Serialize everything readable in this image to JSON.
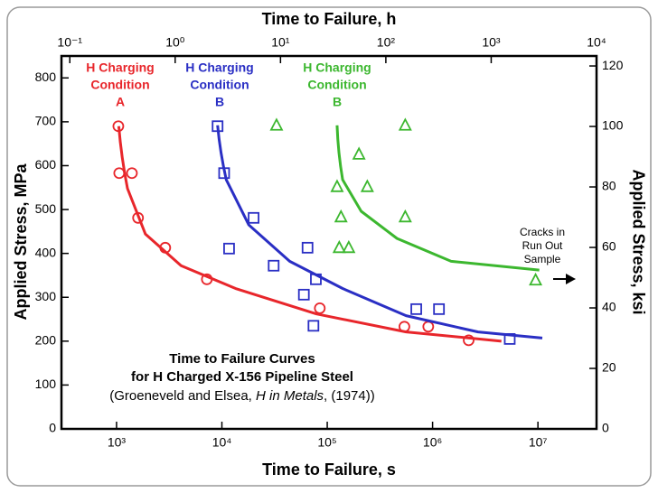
{
  "chart_data": {
    "type": "scatter",
    "xlabel": "Time to Failure, s",
    "x2label": "Time to Failure, h",
    "ylabel": "Applied Stress, MPa",
    "y2label": "Applied Stress, ksi",
    "xscale": "log",
    "xlim": [
      300,
      36000000
    ],
    "xticks": [
      {
        "value": 1000,
        "label": "10³"
      },
      {
        "value": 10000,
        "label": "10⁴"
      },
      {
        "value": 100000,
        "label": "10⁵"
      },
      {
        "value": 1000000,
        "label": "10⁶"
      },
      {
        "value": 10000000,
        "label": "10⁷"
      }
    ],
    "x2lim": [
      0.0833,
      10000
    ],
    "x2ticks": [
      {
        "value": 0.1,
        "label": "10⁻¹"
      },
      {
        "value": 1,
        "label": "10⁰"
      },
      {
        "value": 10,
        "label": "10¹"
      },
      {
        "value": 100,
        "label": "10²"
      },
      {
        "value": 1000,
        "label": "10³"
      },
      {
        "value": 10000,
        "label": "10⁴"
      }
    ],
    "ylim": [
      0,
      850
    ],
    "yticks": [
      0,
      100,
      200,
      300,
      400,
      500,
      600,
      700,
      800
    ],
    "y2lim": [
      0,
      123.3
    ],
    "y2ticks": [
      0,
      20,
      40,
      60,
      80,
      100,
      120
    ],
    "series": [
      {
        "label": [
          "H Charging",
          "Condition",
          "A"
        ],
        "color": "#e8262b",
        "marker": "circle",
        "x": [
          1040,
          1060,
          1400,
          1600,
          2900,
          7200,
          85000,
          540000,
          910000,
          2200000
        ],
        "values": [
          690,
          583,
          583,
          481,
          413,
          341,
          275,
          233,
          233,
          202
        ],
        "curve": {
          "x": [
            1050,
            1270,
            1880,
            4100,
            13500,
            79000,
            560000,
            4500000
          ],
          "values": [
            690,
            548,
            444,
            372,
            320,
            262,
            221,
            200
          ]
        }
      },
      {
        "label": [
          "H Charging",
          "Condition",
          "B"
        ],
        "color": "#2a2fc4",
        "marker": "square",
        "x": [
          9100,
          10500,
          11700,
          20000,
          31000,
          65000,
          60000,
          78000,
          74000,
          700000,
          1150000,
          5400000
        ],
        "values": [
          690,
          583,
          411,
          481,
          372,
          413,
          306,
          341,
          235,
          273,
          273,
          205
        ],
        "curve": {
          "x": [
            9100,
            11000,
            18000,
            44000,
            140000,
            560000,
            2700000,
            11000000
          ],
          "values": [
            692,
            568,
            465,
            382,
            320,
            258,
            221,
            207
          ]
        }
      },
      {
        "label": [
          "H Charging",
          "Condition",
          "B"
        ],
        "color": "#3cb72f",
        "marker": "triangle",
        "x": [
          33000,
          550000,
          200000,
          124000,
          240000,
          135000,
          550000,
          130000,
          160000,
          9500000
        ],
        "values": [
          692,
          692,
          626,
          552,
          552,
          483,
          483,
          413,
          413,
          339
        ],
        "curve": {
          "x": [
            124000,
            140000,
            210000,
            460000,
            1500000,
            10300000
          ],
          "values": [
            692,
            568,
            496,
            434,
            382,
            362
          ]
        }
      }
    ],
    "annotation": [
      "Cracks in",
      "Run Out",
      "Sample"
    ],
    "caption": [
      "Time to Failure Curves",
      "for H Charged X-156 Pipeline Steel"
    ],
    "citation": [
      "(Groeneveld and Elsea, ",
      "H in Metals",
      ", (1974))"
    ]
  }
}
